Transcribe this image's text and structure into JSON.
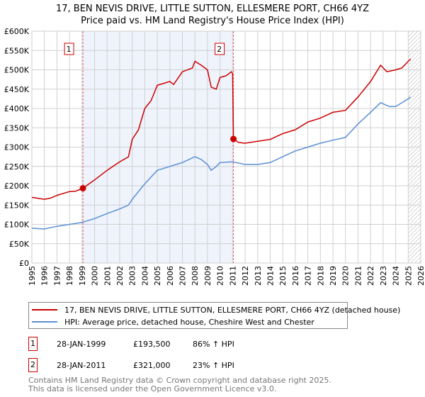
{
  "title_line1": "17, BEN NEVIS DRIVE, LITTLE SUTTON, ELLESMERE PORT, CH66 4YZ",
  "title_line2": "Price paid vs. HM Land Registry's House Price Index (HPI)",
  "chart_data": {
    "type": "line",
    "title": "17, BEN NEVIS DRIVE, LITTLE SUTTON, ELLESMERE PORT, CH66 4YZ - Price paid vs. HM Land Registry's House Price Index (HPI)",
    "xlim": [
      1995,
      2026
    ],
    "ylim": [
      0,
      600000
    ],
    "x_ticks": [
      "1995",
      "1996",
      "1997",
      "1998",
      "1999",
      "2000",
      "2001",
      "2002",
      "2003",
      "2004",
      "2005",
      "2006",
      "2007",
      "2008",
      "2009",
      "2010",
      "2011",
      "2012",
      "2013",
      "2014",
      "2015",
      "2016",
      "2017",
      "2018",
      "2019",
      "2020",
      "2021",
      "2022",
      "2023",
      "2024",
      "2025",
      "2026"
    ],
    "y_ticks": [
      {
        "v": 0,
        "label": "£0"
      },
      {
        "v": 50000,
        "label": "£50K"
      },
      {
        "v": 100000,
        "label": "£100K"
      },
      {
        "v": 150000,
        "label": "£150K"
      },
      {
        "v": 200000,
        "label": "£200K"
      },
      {
        "v": 250000,
        "label": "£250K"
      },
      {
        "v": 300000,
        "label": "£300K"
      },
      {
        "v": 350000,
        "label": "£350K"
      },
      {
        "v": 400000,
        "label": "£400K"
      },
      {
        "v": 450000,
        "label": "£450K"
      },
      {
        "v": 500000,
        "label": "£500K"
      },
      {
        "v": 550000,
        "label": "£550K"
      },
      {
        "v": 600000,
        "label": "£600K"
      }
    ],
    "grid": true,
    "shaded_range": [
      1999.07,
      2011.07
    ],
    "hatched_from": 2025.0,
    "series": [
      {
        "name": "17, BEN NEVIS DRIVE, LITTLE SUTTON, ELLESMERE PORT, CH66 4YZ (detached house)",
        "color": "#cc0000",
        "x": [
          1995,
          1996,
          1996.5,
          1997,
          1998,
          1998.5,
          1999.07,
          2000,
          2001,
          2002,
          2002.7,
          2003,
          2003.5,
          2004,
          2004.5,
          2005,
          2005.5,
          2006,
          2006.3,
          2007,
          2007.8,
          2008,
          2008.5,
          2009,
          2009.3,
          2009.7,
          2010,
          2010.5,
          2010.9,
          2011.0,
          2011.07,
          2011.5,
          2012,
          2013,
          2014,
          2015,
          2016,
          2017,
          2018,
          2019,
          2020,
          2021,
          2022,
          2022.8,
          2023.3,
          2024,
          2024.5,
          2025,
          2025.2
        ],
        "y": [
          170000,
          165000,
          168000,
          175000,
          185000,
          186000,
          193500,
          215000,
          240000,
          262000,
          275000,
          320000,
          345000,
          400000,
          420000,
          460000,
          465000,
          470000,
          462000,
          495000,
          505000,
          522000,
          512000,
          500000,
          455000,
          450000,
          480000,
          485000,
          495000,
          490000,
          321000,
          312000,
          310000,
          315000,
          320000,
          335000,
          345000,
          365000,
          375000,
          390000,
          395000,
          430000,
          470000,
          512000,
          495000,
          500000,
          505000,
          522000,
          528000
        ]
      },
      {
        "name": "HPI: Average price, detached house, Cheshire West and Chester",
        "color": "#5b8fd4",
        "x": [
          1995,
          1996,
          1997,
          1998,
          1999,
          2000,
          2001,
          2002,
          2002.7,
          2003,
          2004,
          2005,
          2006,
          2007,
          2008,
          2008.5,
          2009,
          2009.3,
          2009.7,
          2010,
          2011,
          2012,
          2013,
          2014,
          2015,
          2016,
          2017,
          2018,
          2019,
          2020,
          2021,
          2022,
          2022.8,
          2023.5,
          2024,
          2025,
          2025.2
        ],
        "y": [
          90000,
          88000,
          95000,
          100000,
          105000,
          115000,
          128000,
          140000,
          150000,
          165000,
          205000,
          240000,
          250000,
          260000,
          275000,
          268000,
          255000,
          240000,
          250000,
          260000,
          262000,
          255000,
          255000,
          260000,
          275000,
          290000,
          300000,
          310000,
          318000,
          325000,
          360000,
          390000,
          415000,
          405000,
          405000,
          425000,
          430000
        ]
      }
    ],
    "markers": [
      {
        "label": "1",
        "x": 1999.07,
        "y": 193500
      },
      {
        "label": "2",
        "x": 2011.07,
        "y": 321000
      }
    ]
  },
  "legend": {
    "items": [
      {
        "label": "17, BEN NEVIS DRIVE, LITTLE SUTTON, ELLESMERE PORT, CH66 4YZ (detached house)",
        "color": "#cc0000"
      },
      {
        "label": "HPI: Average price, detached house, Cheshire West and Chester",
        "color": "#5b8fd4"
      }
    ]
  },
  "transactions": [
    {
      "num": "1",
      "date": "28-JAN-1999",
      "price": "£193,500",
      "hpi": "86% ↑ HPI"
    },
    {
      "num": "2",
      "date": "28-JAN-2011",
      "price": "£321,000",
      "hpi": "23% ↑ HPI"
    }
  ],
  "footer": {
    "line1": "Contains HM Land Registry data © Crown copyright and database right 2025.",
    "line2": "This data is licensed under the Open Government Licence v3.0."
  }
}
